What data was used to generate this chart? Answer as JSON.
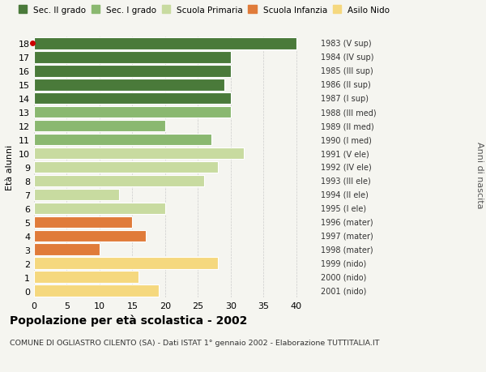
{
  "ages": [
    0,
    1,
    2,
    3,
    4,
    5,
    6,
    7,
    8,
    9,
    10,
    11,
    12,
    13,
    14,
    15,
    16,
    17,
    18
  ],
  "values": [
    19,
    16,
    28,
    10,
    17,
    15,
    20,
    13,
    26,
    28,
    32,
    27,
    20,
    30,
    30,
    29,
    30,
    30,
    40
  ],
  "right_labels": [
    "2001 (nido)",
    "2000 (nido)",
    "1999 (nido)",
    "1998 (mater)",
    "1997 (mater)",
    "1996 (mater)",
    "1995 (I ele)",
    "1994 (II ele)",
    "1993 (III ele)",
    "1992 (IV ele)",
    "1991 (V ele)",
    "1990 (I med)",
    "1989 (II med)",
    "1988 (III med)",
    "1987 (I sup)",
    "1986 (II sup)",
    "1985 (III sup)",
    "1984 (IV sup)",
    "1983 (V sup)"
  ],
  "colors": [
    "#f5d87e",
    "#f5d87e",
    "#f5d87e",
    "#e07b3a",
    "#e07b3a",
    "#e07b3a",
    "#c8dba0",
    "#c8dba0",
    "#c8dba0",
    "#c8dba0",
    "#c8dba0",
    "#8ab870",
    "#8ab870",
    "#8ab870",
    "#4a7a3a",
    "#4a7a3a",
    "#4a7a3a",
    "#4a7a3a",
    "#4a7a3a"
  ],
  "legend_labels": [
    "Sec. II grado",
    "Sec. I grado",
    "Scuola Primaria",
    "Scuola Infanzia",
    "Asilo Nido"
  ],
  "legend_colors": [
    "#4a7a3a",
    "#8ab870",
    "#c8dba0",
    "#e07b3a",
    "#f5d87e"
  ],
  "title": "Popolazione per età scolastica - 2002",
  "subtitle": "COMUNE DI OGLIASTRO CILENTO (SA) - Dati ISTAT 1° gennaio 2002 - Elaborazione TUTTITALIA.IT",
  "ylabel_left": "Età alunni",
  "ylabel_right": "Anni di nascita",
  "xlim": [
    0,
    43
  ],
  "xticks": [
    0,
    5,
    10,
    15,
    20,
    25,
    30,
    35,
    40
  ],
  "bg_color": "#f5f5f0",
  "bar_edge_color": "#ffffff",
  "special_marker_age": 18,
  "special_marker_color": "#cc0000"
}
